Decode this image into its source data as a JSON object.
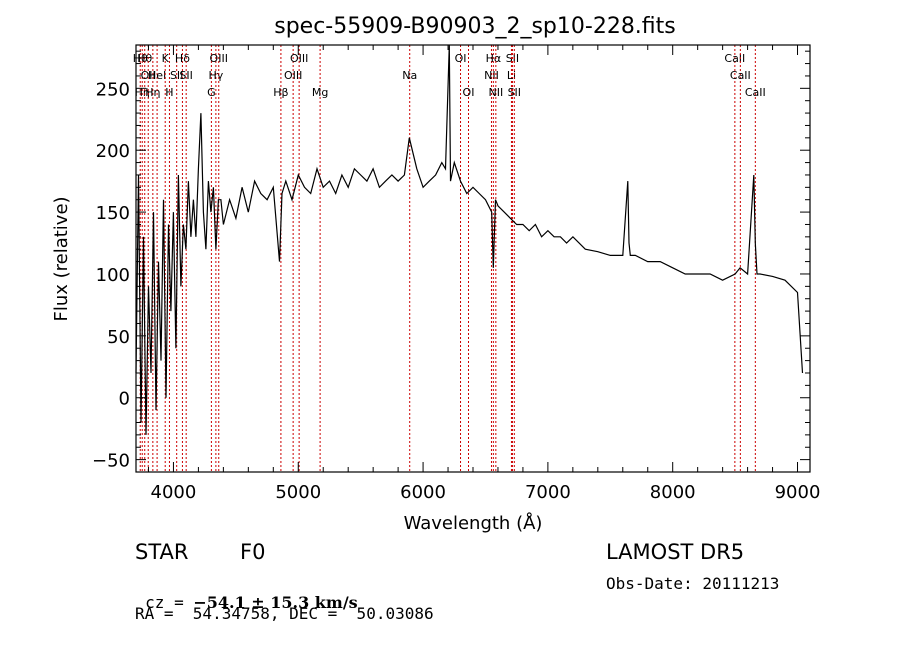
{
  "chart_data": {
    "type": "line",
    "title": "spec-55909-B90903_2_sp10-228.fits",
    "xlabel": "Wavelength (Å)",
    "ylabel": "Flux (relative)",
    "xlim": [
      3700,
      9100
    ],
    "ylim": [
      -60,
      285
    ],
    "xticks": [
      4000,
      5000,
      6000,
      7000,
      8000,
      9000
    ],
    "yticks": [
      -50,
      0,
      50,
      100,
      150,
      200,
      250
    ],
    "grid": false,
    "line_color": "#000000",
    "marker_color": "#cc0000",
    "series": [
      {
        "x": [
          3700,
          3720,
          3740,
          3760,
          3780,
          3800,
          3820,
          3840,
          3860,
          3880,
          3900,
          3920,
          3940,
          3960,
          3980,
          4000,
          4020,
          4040,
          4060,
          4080,
          4100,
          4120,
          4140,
          4160,
          4180,
          4200,
          4220,
          4240,
          4260,
          4280,
          4300,
          4320,
          4340,
          4360,
          4380,
          4400,
          4450,
          4500,
          4550,
          4600,
          4650,
          4700,
          4750,
          4800,
          4850,
          4870,
          4900,
          4950,
          5000,
          5050,
          5100,
          5150,
          5200,
          5250,
          5300,
          5350,
          5400,
          5450,
          5500,
          5550,
          5600,
          5650,
          5700,
          5750,
          5800,
          5850,
          5890,
          5950,
          6000,
          6050,
          6100,
          6150,
          6180,
          6210,
          6220,
          6250,
          6300,
          6350,
          6400,
          6450,
          6500,
          6550,
          6563,
          6580,
          6600,
          6650,
          6700,
          6750,
          6800,
          6850,
          6900,
          6950,
          7000,
          7050,
          7100,
          7150,
          7200,
          7300,
          7400,
          7500,
          7600,
          7640,
          7650,
          7660,
          7700,
          7800,
          7900,
          8000,
          8100,
          8200,
          8300,
          8400,
          8500,
          8540,
          8600,
          8650,
          8662,
          8675,
          8700,
          8800,
          8900,
          9000,
          9040
        ],
        "y": [
          20,
          180,
          -20,
          130,
          -30,
          90,
          20,
          150,
          -10,
          110,
          30,
          160,
          0,
          140,
          70,
          150,
          40,
          180,
          90,
          140,
          120,
          175,
          130,
          160,
          130,
          185,
          230,
          150,
          120,
          175,
          150,
          170,
          120,
          160,
          160,
          140,
          160,
          145,
          170,
          150,
          175,
          165,
          160,
          170,
          110,
          165,
          175,
          160,
          180,
          170,
          165,
          185,
          170,
          175,
          165,
          180,
          170,
          185,
          180,
          175,
          185,
          170,
          175,
          180,
          175,
          180,
          210,
          185,
          170,
          175,
          180,
          190,
          185,
          285,
          175,
          190,
          175,
          165,
          170,
          165,
          160,
          150,
          105,
          160,
          155,
          150,
          145,
          140,
          140,
          135,
          140,
          130,
          135,
          130,
          130,
          125,
          130,
          120,
          118,
          115,
          115,
          175,
          125,
          115,
          115,
          110,
          110,
          105,
          100,
          100,
          100,
          95,
          100,
          105,
          100,
          180,
          125,
          100,
          100,
          98,
          95,
          85,
          20
        ]
      }
    ],
    "line_markers": [
      {
        "x": 3734,
        "label": "Hθ",
        "row": 1
      },
      {
        "x": 3750,
        "label": "Hη",
        "row": 3
      },
      {
        "x": 3770,
        "label": "Hθ",
        "row": 1
      },
      {
        "x": 3798,
        "label": "OII",
        "row": 2
      },
      {
        "x": 3835,
        "label": "Hη",
        "row": 3
      },
      {
        "x": 3869,
        "label": "HeI",
        "row": 2
      },
      {
        "x": 3934,
        "label": "K",
        "row": 1
      },
      {
        "x": 3968,
        "label": "H",
        "row": 3
      },
      {
        "x": 4026,
        "label": "SII",
        "row": 2
      },
      {
        "x": 4072,
        "label": "Hδ",
        "row": 1
      },
      {
        "x": 4102,
        "label": "SII",
        "row": 2
      },
      {
        "x": 4304,
        "label": "G",
        "row": 3
      },
      {
        "x": 4340,
        "label": "Hγ",
        "row": 2
      },
      {
        "x": 4363,
        "label": "OIII",
        "row": 1
      },
      {
        "x": 4861,
        "label": "Hβ",
        "row": 3
      },
      {
        "x": 4959,
        "label": "OIII",
        "row": 2
      },
      {
        "x": 5007,
        "label": "OIII",
        "row": 1
      },
      {
        "x": 5175,
        "label": "Mg",
        "row": 3
      },
      {
        "x": 5893,
        "label": "Na",
        "row": 2
      },
      {
        "x": 6300,
        "label": "OI",
        "row": 1
      },
      {
        "x": 6364,
        "label": "OI",
        "row": 3
      },
      {
        "x": 6548,
        "label": "NII",
        "row": 2
      },
      {
        "x": 6563,
        "label": "Hα",
        "row": 1
      },
      {
        "x": 6583,
        "label": "NII",
        "row": 3
      },
      {
        "x": 6716,
        "label": "SII",
        "row": 1
      },
      {
        "x": 6708,
        "label": "Li",
        "row": 2
      },
      {
        "x": 6731,
        "label": "SII",
        "row": 3
      },
      {
        "x": 8498,
        "label": "CaII",
        "row": 1
      },
      {
        "x": 8542,
        "label": "CaII",
        "row": 2
      },
      {
        "x": 8662,
        "label": "CaII",
        "row": 3
      }
    ]
  },
  "info": {
    "object_class": "STAR",
    "subclass": "F0",
    "survey": "LAMOST DR5",
    "cz_prefix": "cz = ",
    "cz_value": "−54.1 ± 15.3 km/s",
    "obs_date": "Obs-Date: 20111213",
    "coords": "RA =  54.34758, DEC =  50.03086"
  }
}
